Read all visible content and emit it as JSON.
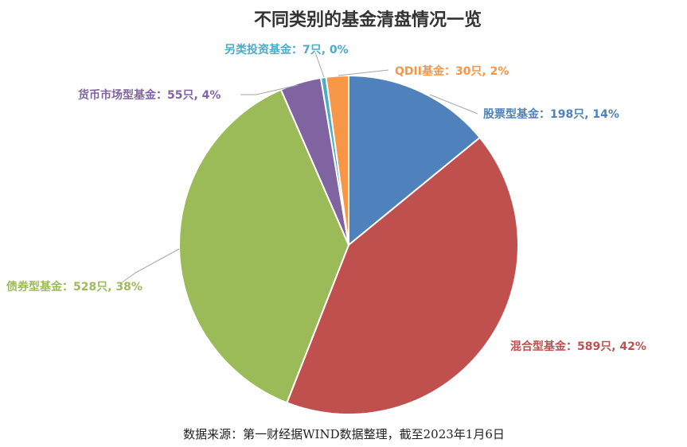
{
  "chart_data": {
    "type": "pie",
    "title": "不同类别的基金清盘情况一览",
    "source": "数据来源：第一财经据WIND数据整理，截至2023年1月6日",
    "slices": [
      {
        "name": "股票型基金",
        "count": 198,
        "unit": "只",
        "percent": 14,
        "label": "股票型基金：198只, 14%",
        "color": "#4f81bd"
      },
      {
        "name": "混合型基金",
        "count": 589,
        "unit": "只",
        "percent": 42,
        "label": "混合型基金：589只, 42%",
        "color": "#c0504d"
      },
      {
        "name": "债券型基金",
        "count": 528,
        "unit": "只",
        "percent": 38,
        "label": "债券型基金：528只, 38%",
        "color": "#9bbb59"
      },
      {
        "name": "货币市场型基金",
        "count": 55,
        "unit": "只",
        "percent": 4,
        "label": "货币市场型基金：55只, 4%",
        "color": "#8064a2"
      },
      {
        "name": "另类投资基金",
        "count": 7,
        "unit": "只",
        "percent": 0,
        "label": "另类投资基金：7只, 0%",
        "color": "#4bacc6"
      },
      {
        "name": "QDII基金",
        "count": 30,
        "unit": "只",
        "percent": 2,
        "label": "QDII基金：30只, 2%",
        "color": "#f79646"
      }
    ]
  }
}
